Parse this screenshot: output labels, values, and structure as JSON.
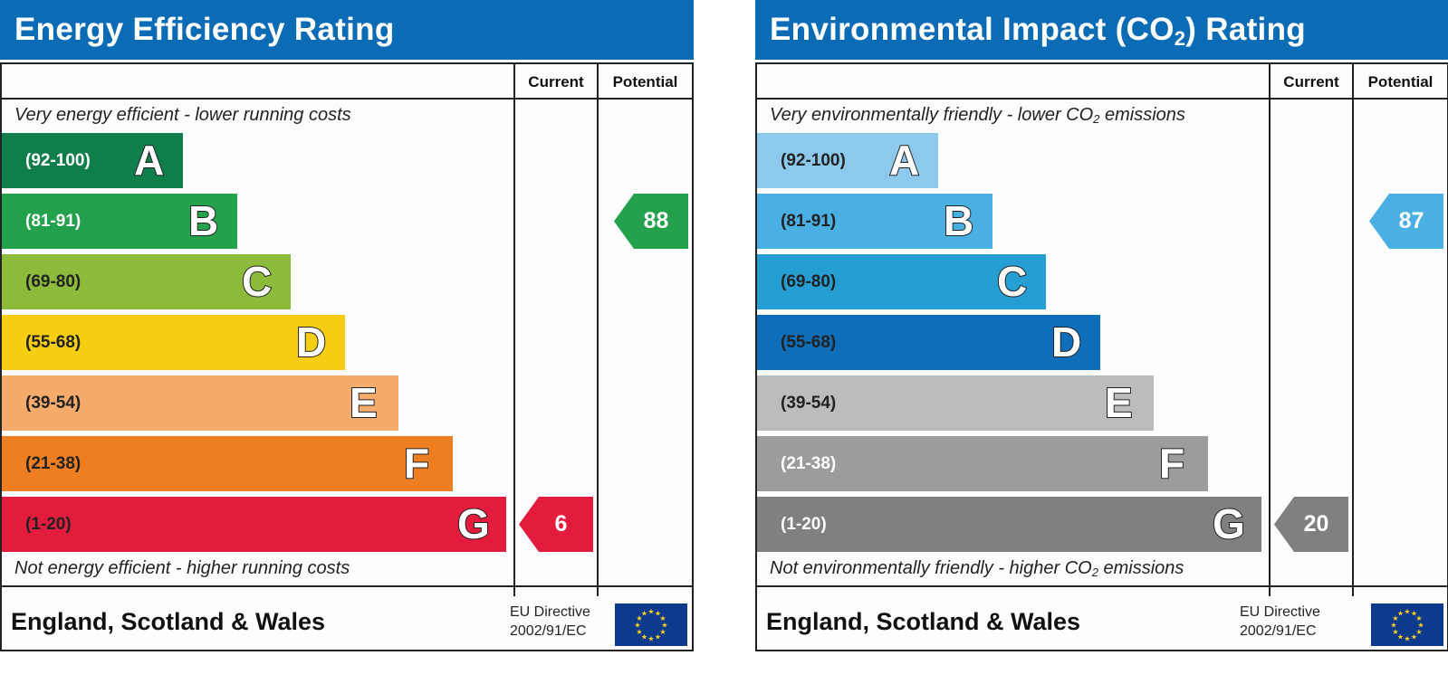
{
  "chart_data": [
    {
      "type": "bar",
      "title": "Energy Efficiency Rating",
      "columns": [
        "Current",
        "Potential"
      ],
      "top_caption": "Very energy efficient - lower running costs",
      "bottom_caption": "Not energy efficient - higher running costs",
      "bands": [
        {
          "range": "(92-100)",
          "letter": "A",
          "color": "#0f7e4b",
          "range_color": "#ffffff"
        },
        {
          "range": "(81-91)",
          "letter": "B",
          "color": "#23a14d",
          "range_color": "#ffffff"
        },
        {
          "range": "(69-80)",
          "letter": "C",
          "color": "#8cbb3c",
          "range_color": "#222222"
        },
        {
          "range": "(55-68)",
          "letter": "D",
          "color": "#f6cf14",
          "range_color": "#222222"
        },
        {
          "range": "(39-54)",
          "letter": "E",
          "color": "#f4ab6c",
          "range_color": "#222222"
        },
        {
          "range": "(21-38)",
          "letter": "F",
          "color": "#ed7f22",
          "range_color": "#222222"
        },
        {
          "range": "(1-20)",
          "letter": "G",
          "color": "#e31b3c",
          "range_color": "#222222"
        }
      ],
      "current": {
        "value": 6,
        "band": "G",
        "color": "#e31b3c"
      },
      "potential": {
        "value": 88,
        "band": "B",
        "color": "#23a14d"
      }
    },
    {
      "type": "bar",
      "title_parts": [
        "Environmental Impact (CO",
        "2",
        ") Rating"
      ],
      "columns": [
        "Current",
        "Potential"
      ],
      "top_caption_parts": [
        "Very environmentally friendly - lower CO",
        "2",
        " emissions"
      ],
      "bottom_caption_parts": [
        "Not environmentally friendly - higher CO",
        "2",
        " emissions"
      ],
      "bands": [
        {
          "range": "(92-100)",
          "letter": "A",
          "color": "#8cc9ec",
          "range_color": "#222222"
        },
        {
          "range": "(81-91)",
          "letter": "B",
          "color": "#4ab0e3",
          "range_color": "#222222"
        },
        {
          "range": "(69-80)",
          "letter": "C",
          "color": "#259ed4",
          "range_color": "#222222"
        },
        {
          "range": "(55-68)",
          "letter": "D",
          "color": "#0f6eba",
          "range_color": "#222222"
        },
        {
          "range": "(39-54)",
          "letter": "E",
          "color": "#bdbcbc",
          "range_color": "#222222"
        },
        {
          "range": "(21-38)",
          "letter": "F",
          "color": "#9c9c9c",
          "range_color": "#ffffff"
        },
        {
          "range": "(1-20)",
          "letter": "G",
          "color": "#808080",
          "range_color": "#ffffff"
        }
      ],
      "current": {
        "value": 20,
        "band": "G",
        "color": "#808080"
      },
      "potential": {
        "value": 87,
        "band": "B",
        "color": "#4ab0e3"
      }
    }
  ],
  "footer": {
    "region": "England, Scotland & Wales",
    "directive_line1": "EU Directive",
    "directive_line2": "2002/91/EC",
    "flag_icon": "eu-flag-icon"
  }
}
